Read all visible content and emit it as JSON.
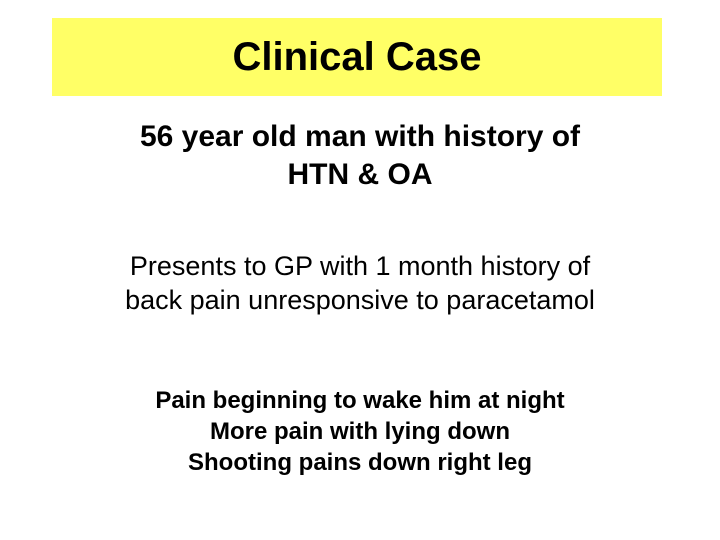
{
  "slide": {
    "title": "Clinical Case",
    "subtitle_line1": "56 year old man with history of",
    "subtitle_line2": "HTN & OA",
    "body1_line1": "Presents to GP with 1 month history of",
    "body1_line2": "back pain unresponsive to paracetamol",
    "body2_line1": "Pain beginning to wake him at night",
    "body2_line2": "More pain with lying down",
    "body2_line3": "Shooting pains down right leg"
  },
  "style": {
    "background_color": "#ffffff",
    "title_bar_color": "#ffff66",
    "text_color": "#000000",
    "title_fontsize": 40,
    "subtitle_fontsize": 30,
    "body1_fontsize": 27,
    "body2_fontsize": 24,
    "title_bold": true,
    "subtitle_bold": true,
    "body1_bold": false,
    "body2_bold": true,
    "font_family": "Arial"
  }
}
